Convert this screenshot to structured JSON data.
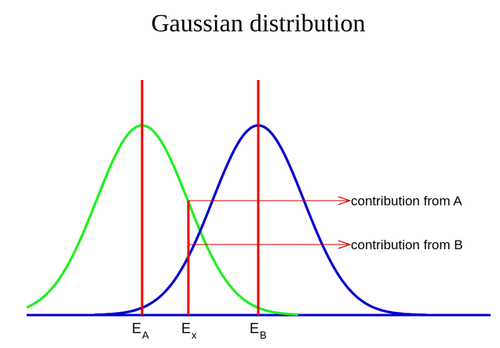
{
  "title": "Gaussian distribution",
  "colors": {
    "curve_a": "#22ee22",
    "curve_b": "#0000cc",
    "markers": "#ee0000",
    "arrows": "#cc0000",
    "axis": "#0000cc"
  },
  "annotations": {
    "contribution_a": "contribution from A",
    "contribution_b": "contribution from B"
  },
  "ticks": {
    "ea": {
      "main": "E",
      "sub": "A"
    },
    "ex": {
      "main": "E",
      "sub": "x"
    },
    "eb": {
      "main": "E",
      "sub": "B"
    }
  }
}
